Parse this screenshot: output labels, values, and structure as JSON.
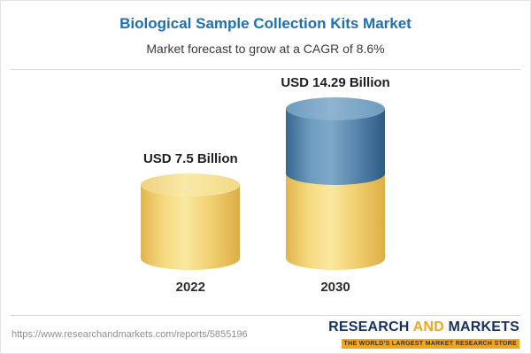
{
  "header": {
    "title": "Biological Sample Collection Kits Market",
    "subtitle": "Market forecast to grow at a CAGR of 8.6%"
  },
  "chart_data": {
    "type": "bar",
    "style": "3d-cylinder",
    "title": "Biological Sample Collection Kits Market",
    "subtitle": "Market forecast to grow at a CAGR of 8.6%",
    "categories": [
      "2022",
      "2030"
    ],
    "values": [
      7.5,
      14.29
    ],
    "value_labels": [
      "USD 7.5 Billion",
      "USD 14.29 Billion"
    ],
    "unit": "USD Billion",
    "cagr_percent": 8.6,
    "xlabel": "",
    "ylabel": "",
    "legend": "none",
    "grid": false,
    "colors": {
      "base_segment": "#f0ce6e",
      "growth_segment": "#527fa7"
    },
    "notes": "2030 cylinder is stacked: yellow lower segment equals the 2022 value (7.5), blue upper segment is the growth to 14.29"
  },
  "footer": {
    "url": "https://www.researchandmarkets.com/reports/5855196",
    "logo": {
      "research": "RESEARCH ",
      "and": "AND",
      "markets": " MARKETS",
      "tagline": "THE WORLD'S LARGEST MARKET RESEARCH STORE"
    }
  }
}
